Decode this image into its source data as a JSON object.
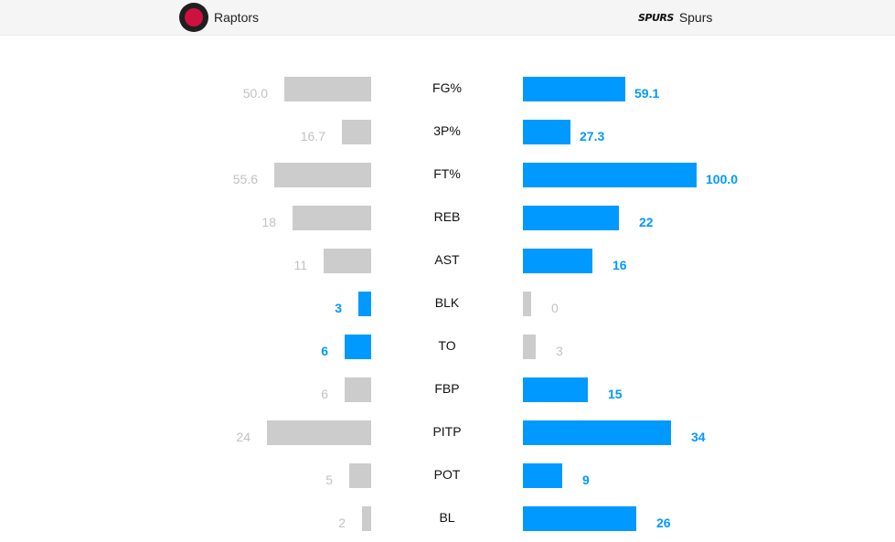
{
  "teams": {
    "home": {
      "name": "Raptors",
      "logo_icon": "raptors-logo-icon"
    },
    "away": {
      "name": "Spurs",
      "logo_icon": "spurs-logo-icon",
      "logo_text": "SPURS"
    }
  },
  "colors": {
    "win": "#0099ff",
    "lose": "#cccccc",
    "win_text": "#0099ff",
    "lose_text": "#c2c2c2"
  },
  "chart_data": {
    "type": "bar",
    "categories": [
      "FG%",
      "3P%",
      "FT%",
      "REB",
      "AST",
      "BLK",
      "TO",
      "FBP",
      "PITP",
      "POT",
      "BL"
    ],
    "series": [
      {
        "name": "Raptors",
        "values": [
          "50.0",
          "16.7",
          "55.6",
          "18",
          "11",
          "3",
          "6",
          "6",
          "24",
          "5",
          "2"
        ]
      },
      {
        "name": "Spurs",
        "values": [
          "59.1",
          "27.3",
          "100.0",
          "22",
          "16",
          "0",
          "3",
          "15",
          "34",
          "9",
          "26"
        ]
      }
    ],
    "winner": [
      "away",
      "away",
      "away",
      "away",
      "away",
      "home",
      "home",
      "away",
      "away",
      "away",
      "away"
    ],
    "pct_max": 100,
    "count_max": 40
  }
}
